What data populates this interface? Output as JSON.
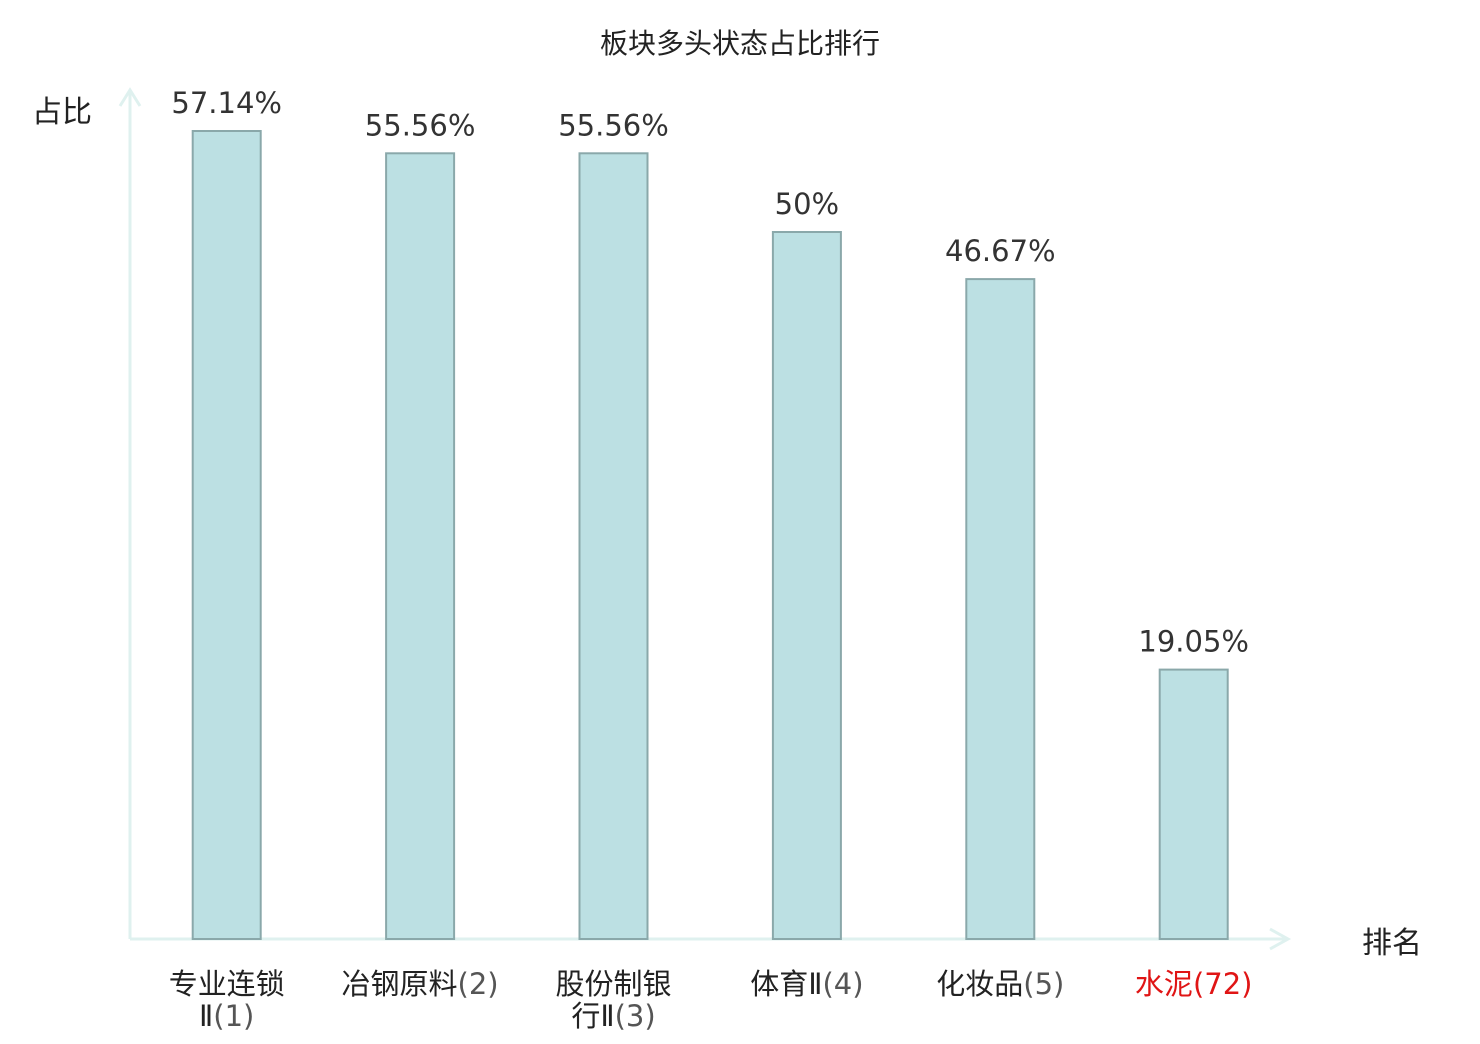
{
  "chart_data": {
    "type": "bar",
    "title": "板块多头状态占比排行",
    "ylabel": "占比",
    "xlabel": "排名",
    "categories": [
      {
        "name_lines": [
          "专业连锁",
          "Ⅱ"
        ],
        "rank": "(1)",
        "highlight": false
      },
      {
        "name_lines": [
          "冶钢原料"
        ],
        "rank": "(2)",
        "highlight": false
      },
      {
        "name_lines": [
          "股份制银",
          "行Ⅱ"
        ],
        "rank": "(3)",
        "highlight": false
      },
      {
        "name_lines": [
          "体育Ⅱ"
        ],
        "rank": "(4)",
        "highlight": false
      },
      {
        "name_lines": [
          "化妆品"
        ],
        "rank": "(5)",
        "highlight": false
      },
      {
        "name_lines": [
          "水泥"
        ],
        "rank": "(72)",
        "highlight": true
      }
    ],
    "values": [
      57.14,
      55.56,
      55.56,
      50,
      46.67,
      19.05
    ],
    "value_labels": [
      "57.14%",
      "55.56%",
      "55.56%",
      "50%",
      "46.67%",
      "19.05%"
    ],
    "ylim": [
      0,
      57.14
    ],
    "grid": false,
    "legend": "none",
    "colors": {
      "bar_fill": "#bce0e3",
      "bar_stroke": "#8aa8aa",
      "axis": "#dff1ef",
      "text": "#222222",
      "value_text": "#333333",
      "rank_text": "#555555",
      "highlight": "#e01515"
    }
  }
}
